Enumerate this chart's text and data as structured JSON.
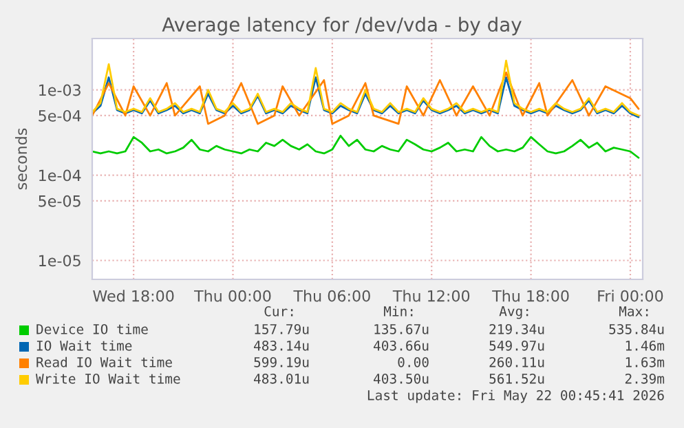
{
  "chart_data": {
    "type": "line",
    "title": "Average latency for /dev/vda - by day",
    "ylabel": "seconds",
    "log": "y",
    "grid": true,
    "legend": "bottom",
    "x": [
      "2026-05-20T15:30",
      "2026-05-20T16:00",
      "2026-05-20T16:30",
      "2026-05-20T17:00",
      "2026-05-20T17:30",
      "2026-05-20T18:00",
      "2026-05-20T18:30",
      "2026-05-20T19:00",
      "2026-05-20T19:30",
      "2026-05-20T20:00",
      "2026-05-20T20:30",
      "2026-05-20T21:00",
      "2026-05-20T21:30",
      "2026-05-20T22:00",
      "2026-05-20T22:30",
      "2026-05-20T23:00",
      "2026-05-20T23:30",
      "2026-05-21T00:00",
      "2026-05-21T00:30",
      "2026-05-21T01:00",
      "2026-05-21T01:30",
      "2026-05-21T02:00",
      "2026-05-21T02:30",
      "2026-05-21T03:00",
      "2026-05-21T03:30",
      "2026-05-21T04:00",
      "2026-05-21T04:30",
      "2026-05-21T05:00",
      "2026-05-21T05:30",
      "2026-05-21T06:00",
      "2026-05-21T06:30",
      "2026-05-21T07:00",
      "2026-05-21T07:30",
      "2026-05-21T08:00",
      "2026-05-21T08:30",
      "2026-05-21T09:00",
      "2026-05-21T09:30",
      "2026-05-21T10:00",
      "2026-05-21T10:30",
      "2026-05-21T11:00",
      "2026-05-21T11:30",
      "2026-05-21T12:00",
      "2026-05-21T12:30",
      "2026-05-21T13:00",
      "2026-05-21T13:30",
      "2026-05-21T14:00",
      "2026-05-21T14:30",
      "2026-05-21T15:00",
      "2026-05-21T15:30",
      "2026-05-21T16:00",
      "2026-05-21T16:30",
      "2026-05-21T17:00",
      "2026-05-21T17:30",
      "2026-05-21T18:00",
      "2026-05-21T18:30",
      "2026-05-21T19:00",
      "2026-05-21T19:30",
      "2026-05-21T20:00",
      "2026-05-21T20:30",
      "2026-05-21T21:00",
      "2026-05-21T21:30",
      "2026-05-21T22:00",
      "2026-05-21T22:30",
      "2026-05-21T23:00",
      "2026-05-21T23:30",
      "2026-05-22T00:00",
      "2026-05-22T00:30"
    ],
    "xlim": [
      "2026-05-20T15:30",
      "2026-05-22T00:45"
    ],
    "xticks": [
      {
        "value": "2026-05-20T18:00",
        "label": "Wed 18:00"
      },
      {
        "value": "2026-05-21T00:00",
        "label": "Thu 00:00"
      },
      {
        "value": "2026-05-21T06:00",
        "label": "Thu 06:00"
      },
      {
        "value": "2026-05-21T12:00",
        "label": "Thu 12:00"
      },
      {
        "value": "2026-05-21T18:00",
        "label": "Thu 18:00"
      },
      {
        "value": "2026-05-22T00:00",
        "label": "Fri 00:00"
      }
    ],
    "ylim": [
      6e-06,
      0.004
    ],
    "yticks": [
      {
        "value": 1e-05,
        "label": "1e-05"
      },
      {
        "value": 5e-05,
        "label": "5e-05"
      },
      {
        "value": 0.0001,
        "label": "1e-04"
      },
      {
        "value": 0.0005,
        "label": "5e-04"
      },
      {
        "value": 0.001,
        "label": "1e-03"
      }
    ],
    "series": [
      {
        "name": "Device IO time",
        "color": "#00cc00",
        "values": [
          0.00019,
          0.00018,
          0.00019,
          0.00018,
          0.00019,
          0.00028,
          0.00024,
          0.00019,
          0.0002,
          0.00018,
          0.00019,
          0.00021,
          0.00026,
          0.0002,
          0.00019,
          0.00022,
          0.0002,
          0.00019,
          0.00018,
          0.0002,
          0.00019,
          0.00024,
          0.00022,
          0.00026,
          0.00022,
          0.0002,
          0.00023,
          0.00019,
          0.00018,
          0.0002,
          0.00029,
          0.00022,
          0.00026,
          0.0002,
          0.00019,
          0.00022,
          0.0002,
          0.00019,
          0.00026,
          0.00023,
          0.0002,
          0.00019,
          0.00021,
          0.00024,
          0.00019,
          0.0002,
          0.00019,
          0.00028,
          0.00022,
          0.00019,
          0.0002,
          0.00019,
          0.00021,
          0.00028,
          0.00023,
          0.00019,
          0.00018,
          0.00019,
          0.00022,
          0.00026,
          0.00021,
          0.00024,
          0.00019,
          0.00021,
          0.0002,
          0.00019,
          0.00016
        ]
      },
      {
        "name": "IO Wait time",
        "color": "#0066b3",
        "values": [
          0.00053,
          0.00065,
          0.0014,
          0.00058,
          0.00053,
          0.00058,
          0.00053,
          0.00075,
          0.00053,
          0.00058,
          0.00065,
          0.00053,
          0.00058,
          0.00053,
          0.0009,
          0.00058,
          0.00053,
          0.00065,
          0.00053,
          0.00058,
          0.00085,
          0.00053,
          0.00058,
          0.00053,
          0.00065,
          0.00058,
          0.00053,
          0.0014,
          0.00058,
          0.00053,
          0.00065,
          0.00058,
          0.00053,
          0.0009,
          0.00058,
          0.00053,
          0.00065,
          0.00053,
          0.00058,
          0.00053,
          0.00075,
          0.00058,
          0.00053,
          0.00058,
          0.00065,
          0.00053,
          0.00058,
          0.00053,
          0.00058,
          0.00053,
          0.0014,
          0.00065,
          0.00058,
          0.00053,
          0.00058,
          0.00053,
          0.00065,
          0.00058,
          0.00053,
          0.00058,
          0.00075,
          0.00053,
          0.00058,
          0.00053,
          0.00065,
          0.00053,
          0.00048
        ]
      },
      {
        "name": "Read IO Wait time",
        "color": "#ff8000",
        "values": [
          0.0005,
          null,
          0.0012,
          null,
          0.0005,
          0.0011,
          null,
          0.0005,
          null,
          0.0012,
          0.0005,
          null,
          null,
          0.0011,
          0.0004,
          null,
          0.0005,
          null,
          0.0012,
          null,
          0.0004,
          null,
          0.0005,
          0.0011,
          null,
          0.0005,
          null,
          null,
          0.0013,
          0.0004,
          null,
          0.0005,
          null,
          0.0012,
          0.0005,
          null,
          null,
          0.0004,
          0.0011,
          null,
          0.0005,
          null,
          0.0013,
          null,
          0.0005,
          null,
          0.0011,
          null,
          0.0005,
          null,
          0.0016,
          null,
          0.0005,
          null,
          0.0012,
          0.0005,
          null,
          null,
          0.0013,
          null,
          0.0005,
          null,
          0.0011,
          null,
          null,
          0.0008,
          0.0006
        ]
      },
      {
        "name": "Write IO Wait time",
        "color": "#ffcc00",
        "values": [
          0.00055,
          0.0007,
          0.002,
          0.0006,
          0.00055,
          0.0006,
          0.00055,
          0.0008,
          0.00055,
          0.0006,
          0.0007,
          0.00055,
          0.0006,
          0.00055,
          0.001,
          0.0006,
          0.00055,
          0.0007,
          0.00055,
          0.0006,
          0.0009,
          0.00055,
          0.0006,
          0.00055,
          0.0007,
          0.0006,
          0.00055,
          0.0018,
          0.0006,
          0.00055,
          0.0007,
          0.0006,
          0.00055,
          0.001,
          0.0006,
          0.00055,
          0.0007,
          0.00055,
          0.0006,
          0.00055,
          0.0008,
          0.0006,
          0.00055,
          0.0006,
          0.0007,
          0.00055,
          0.0006,
          0.00055,
          0.0006,
          0.00055,
          0.0022,
          0.0007,
          0.0006,
          0.00055,
          0.0006,
          0.00055,
          0.0007,
          0.0006,
          0.00055,
          0.0006,
          0.0008,
          0.00055,
          0.0006,
          0.00055,
          0.0007,
          0.00055,
          0.0005
        ]
      }
    ],
    "annotations": [
      "Cur:",
      "Min:",
      "Avg:",
      "Max:",
      "157.79u",
      "135.67u",
      "219.34u",
      "535.84u",
      "483.14u",
      "403.66u",
      "549.97u",
      "1.46m",
      "599.19u",
      "0.00",
      "260.11u",
      "1.63m",
      "483.01u",
      "403.50u",
      "561.52u",
      "2.39m",
      "Last update: Fri May 22 00:45:41 2026"
    ]
  }
}
